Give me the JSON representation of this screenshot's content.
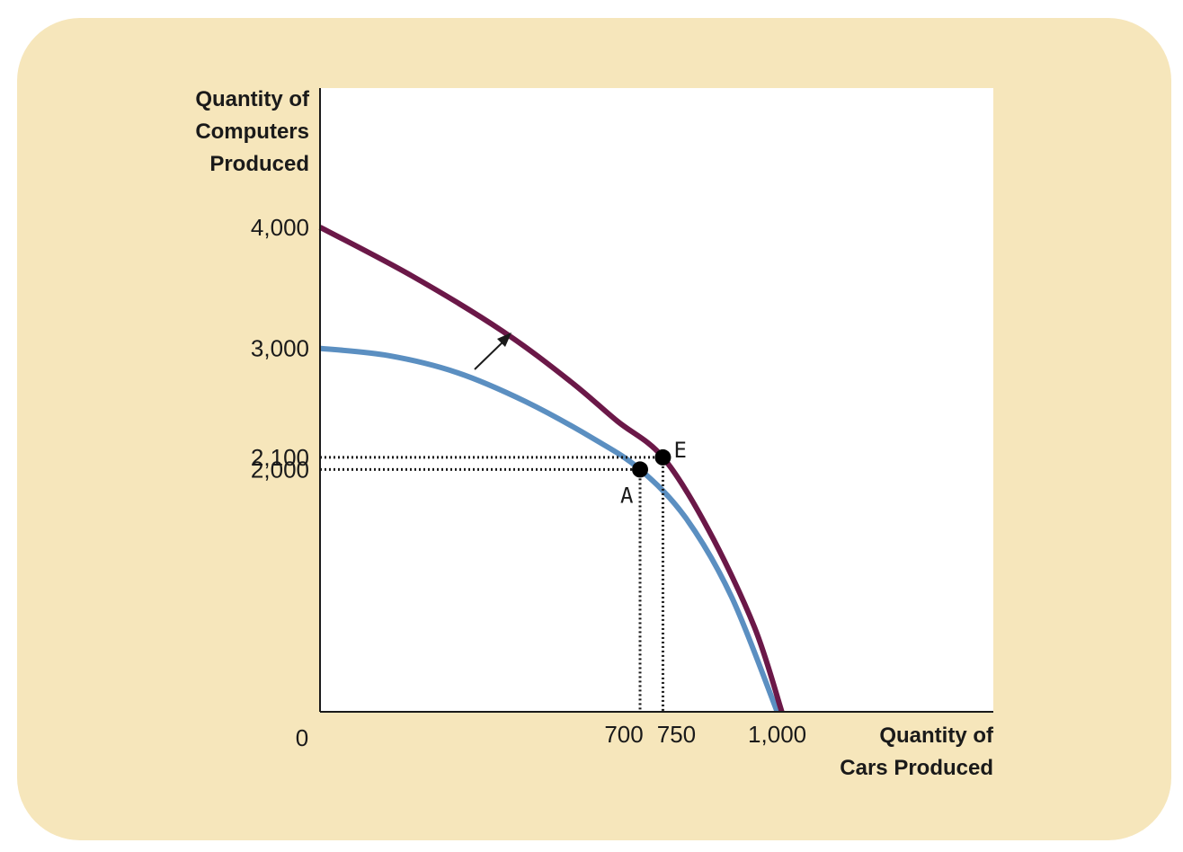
{
  "chart_data": {
    "type": "line",
    "title": "",
    "xlabel": [
      "Quantity of",
      "Cars Produced"
    ],
    "ylabel": [
      "Quantity of",
      "Computers",
      "Produced"
    ],
    "origin_label": "0",
    "xlim": [
      0,
      1000
    ],
    "ylim": [
      0,
      4000
    ],
    "x_ticks": [
      {
        "value": 700,
        "label": "700"
      },
      {
        "value": 750,
        "label": "750"
      },
      {
        "value": 1000,
        "label": "1,000"
      }
    ],
    "y_ticks": [
      {
        "value": 4000,
        "label": "4,000"
      },
      {
        "value": 3000,
        "label": "3,000"
      },
      {
        "value": 2100,
        "label": "2,100"
      },
      {
        "value": 2000,
        "label": "2,000"
      }
    ],
    "series": [
      {
        "color": "#5b8fc1",
        "points": [
          [
            0,
            3000
          ],
          [
            150,
            2940
          ],
          [
            300,
            2800
          ],
          [
            450,
            2560
          ],
          [
            600,
            2250
          ],
          [
            700,
            2000
          ],
          [
            800,
            1600
          ],
          [
            900,
            950
          ],
          [
            1000,
            0
          ]
        ]
      },
      {
        "color": "#6b1848",
        "points": [
          [
            0,
            4000
          ],
          [
            200,
            3600
          ],
          [
            400,
            3140
          ],
          [
            550,
            2720
          ],
          [
            650,
            2400
          ],
          [
            750,
            2100
          ],
          [
            850,
            1500
          ],
          [
            950,
            700
          ],
          [
            1010,
            0
          ]
        ]
      }
    ],
    "points": [
      {
        "label": "A",
        "x": 700,
        "y": 2000
      },
      {
        "label": "E",
        "x": 750,
        "y": 2100
      }
    ],
    "annotations": [
      {
        "type": "arrow",
        "meaning": "outward shift of frontier"
      }
    ],
    "grid": false,
    "legend": "none"
  }
}
